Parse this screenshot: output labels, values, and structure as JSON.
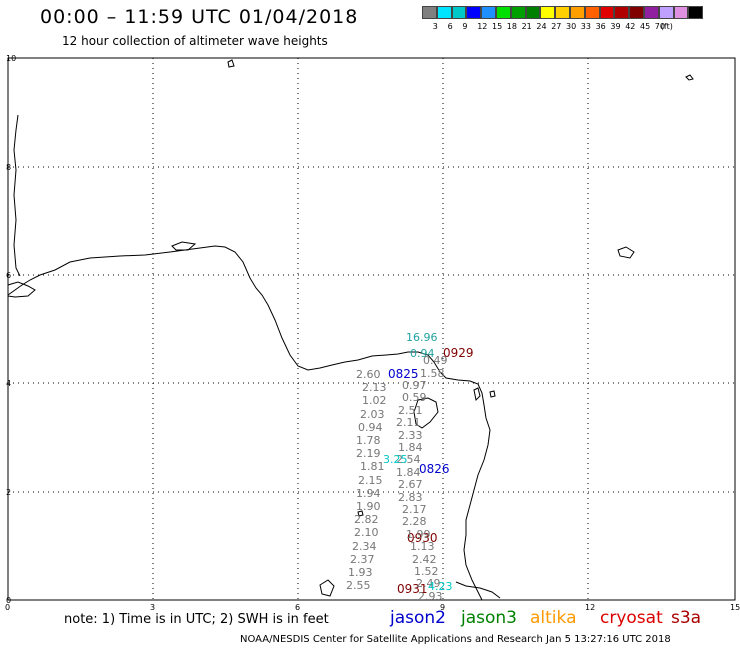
{
  "header": {
    "title": "00:00 – 11:59 UTC 01/04/2018",
    "subtitle": "12 hour collection of altimeter wave heights"
  },
  "colorbar": {
    "colors": [
      "#808080",
      "#00e5ff",
      "#00c8c8",
      "#0000ff",
      "#1e90ff",
      "#00e000",
      "#00a000",
      "#008000",
      "#ffff00",
      "#ffd000",
      "#ffa000",
      "#ff6000",
      "#e00000",
      "#b00000",
      "#800000",
      "#9020a0",
      "#c0a0ff",
      "#e090e0",
      "#000000"
    ],
    "labels": [
      "3",
      "6",
      "9",
      "12",
      "15",
      "18",
      "21",
      "24",
      "27",
      "30",
      "33",
      "36",
      "39",
      "42",
      "45",
      "70",
      "(ft)"
    ]
  },
  "axes": {
    "x_ticks": [
      "0",
      "3",
      "6",
      "9",
      "12",
      "15"
    ],
    "y_ticks": [
      "0",
      "2",
      "4",
      "6",
      "8",
      "10"
    ]
  },
  "passes": [
    {
      "label": "0825",
      "color": "#0000cc"
    },
    {
      "label": "0826",
      "color": "#0000cc"
    },
    {
      "label": "0929",
      "color": "#800000"
    },
    {
      "label": "0930",
      "color": "#800000"
    },
    {
      "label": "0931",
      "color": "#800000"
    }
  ],
  "wave_values": {
    "west_column": [
      "2.60",
      "2.13",
      "1.02",
      "2.03",
      "0.94",
      "1.78",
      "2.19",
      "1.81",
      "2.15",
      "1.94",
      "1.90",
      "2.82",
      "2.10",
      "2.34",
      "2.37",
      "1.93",
      "2.55"
    ],
    "east_column": [
      "0.97",
      "0.59",
      "2.51",
      "2.11",
      "2.33",
      "1.84",
      "2.54",
      "1.84",
      "2.67",
      "2.83",
      "2.17",
      "2.28",
      "1.99",
      "1.13",
      "2.42",
      "1.52",
      "2.49",
      "2.93"
    ],
    "highlights": [
      {
        "value": "16.96",
        "color": "#20a0a0"
      },
      {
        "value": "0.94",
        "color": "#20a0a0"
      },
      {
        "value": "0.49",
        "color": "#777777"
      },
      {
        "value": "1.58",
        "color": "#777777"
      },
      {
        "value": "3.25",
        "color": "#00c8c8"
      },
      {
        "value": "4.23",
        "color": "#00c8c8"
      }
    ]
  },
  "note": "note: 1) Time is in UTC; 2) SWH is in feet",
  "satellites": [
    {
      "name": "jason2",
      "color": "#0000cc"
    },
    {
      "name": "jason3",
      "color": "#008000"
    },
    {
      "name": "altika",
      "color": "#ff9900"
    },
    {
      "name": "cryosat",
      "color": "#dd0000"
    },
    {
      "name": "s3a",
      "color": "#aa0000"
    }
  ],
  "footer": "NOAA/NESDIS Center for Satellite Applications and Research    Jan  5 13:27:16 UTC 2018"
}
